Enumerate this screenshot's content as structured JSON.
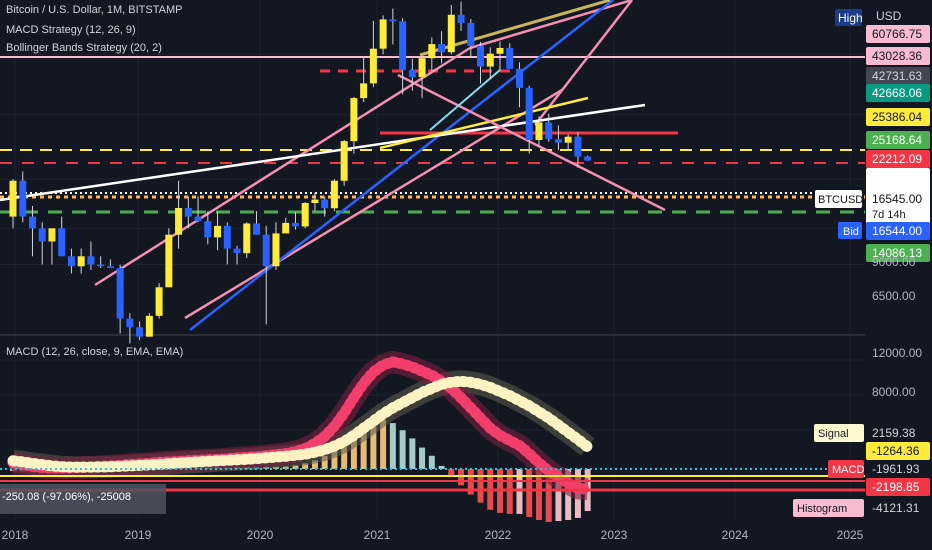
{
  "header": {
    "symbol_title": "Bitcoin / U.S. Dollar, 1M, BITSTAMP",
    "study_1": "MACD Strategy (12, 26, 9)",
    "study_2": "Bollinger Bands Strategy (20, 2)",
    "currency": "USD",
    "high_label": "High"
  },
  "macd_pane": {
    "title": "MACD (12, 26, close, 9, EMA, EMA)"
  },
  "measure_box": "-250.08 (-97.06%), -25008",
  "chart_data": [
    {
      "type": "candlestick",
      "title": "Bitcoin / U.S. Dollar, 1M, BITSTAMP",
      "x_axis": {
        "ticks": [
          "2018",
          "2019",
          "2020",
          "2021",
          "2022",
          "2023",
          "2024",
          "2025"
        ]
      },
      "y_axis": {
        "scale": "log",
        "ticks": [
          9000,
          6500
        ],
        "unit": "USD"
      },
      "price_labels": [
        {
          "value": "60766.75",
          "color": "#f8bbd0",
          "text": "#131722"
        },
        {
          "value": "43028.36",
          "color": "#f8bbd0",
          "text": "#131722"
        },
        {
          "value": "42731.63",
          "color": "#434651",
          "text": "#d1d4dc"
        },
        {
          "value": "42668.06",
          "color": "#089981",
          "text": "#ffffff"
        },
        {
          "value": "25386.04",
          "color": "#ffeb3b",
          "text": "#131722"
        },
        {
          "value": "25168.64",
          "color": "#4caf50",
          "text": "#ffffff"
        },
        {
          "value": "22212.09",
          "color": "#f23645",
          "text": "#ffffff"
        },
        {
          "value": "16545.00",
          "color": "#ffffff",
          "text": "#131722"
        },
        {
          "value": "16544.00",
          "color": "#2962ff",
          "text": "#ffffff"
        },
        {
          "value": "14086.13",
          "color": "#4caf50",
          "text": "#ffffff"
        }
      ],
      "current": {
        "symbol": "BTCUSD",
        "price": "16545.00",
        "countdown": "7d 14h",
        "bid_label": "Bid",
        "bid": "16544.00"
      },
      "candles": [
        [
          10000,
          14000,
          9000,
          13800
        ],
        [
          13800,
          15000,
          9500,
          10000
        ],
        [
          10000,
          11000,
          7000,
          9000
        ],
        [
          9000,
          9500,
          6500,
          8000
        ],
        [
          8000,
          8500,
          6500,
          9000
        ],
        [
          9000,
          10000,
          7000,
          7000
        ],
        [
          7000,
          7500,
          6000,
          6400
        ],
        [
          6400,
          7500,
          6000,
          7000
        ],
        [
          7000,
          8000,
          6200,
          6500
        ],
        [
          6500,
          7000,
          6300,
          6400
        ],
        [
          6400,
          6800,
          6300,
          6300
        ],
        [
          6300,
          6500,
          3500,
          4000
        ],
        [
          4000,
          4200,
          3200,
          3700
        ],
        [
          3700,
          3900,
          3300,
          3400
        ],
        [
          3400,
          4200,
          3400,
          4100
        ],
        [
          4100,
          5500,
          4000,
          5300
        ],
        [
          5300,
          9000,
          5300,
          8500
        ],
        [
          8500,
          13800,
          7500,
          10800
        ],
        [
          10800,
          12000,
          9000,
          10000
        ],
        [
          10000,
          12000,
          9500,
          9600
        ],
        [
          9600,
          10500,
          7800,
          8300
        ],
        [
          8300,
          10500,
          7400,
          9200
        ],
        [
          9200,
          9500,
          6500,
          7500
        ],
        [
          7500,
          7700,
          6500,
          7200
        ],
        [
          7200,
          9500,
          6900,
          9400
        ],
        [
          9400,
          10500,
          8500,
          8500
        ],
        [
          8500,
          9200,
          3800,
          6400
        ],
        [
          6400,
          9500,
          6200,
          8600
        ],
        [
          8600,
          9900,
          8600,
          9450
        ],
        [
          9450,
          10400,
          8900,
          9150
        ],
        [
          9150,
          11400,
          9000,
          11300
        ],
        [
          11300,
          12400,
          10500,
          11650
        ],
        [
          11650,
          12000,
          10000,
          10780
        ],
        [
          10780,
          14000,
          10500,
          13800
        ],
        [
          13800,
          19900,
          13200,
          19700
        ],
        [
          19700,
          29300,
          17600,
          29000
        ],
        [
          29000,
          42000,
          28000,
          33100
        ],
        [
          33100,
          58000,
          32000,
          45200
        ],
        [
          45200,
          61000,
          43000,
          58800
        ],
        [
          58800,
          64800,
          47000,
          57800
        ],
        [
          57800,
          59500,
          30000,
          37300
        ],
        [
          37300,
          41300,
          31000,
          35000
        ],
        [
          35000,
          42000,
          29000,
          41500
        ],
        [
          41500,
          50000,
          37000,
          47100
        ],
        [
          47100,
          52900,
          39600,
          43800
        ],
        [
          43800,
          67000,
          43000,
          61300
        ],
        [
          61300,
          69000,
          53000,
          57000
        ],
        [
          57000,
          59000,
          42000,
          46300
        ],
        [
          46300,
          48000,
          33000,
          38500
        ],
        [
          38500,
          45800,
          34300,
          43200
        ],
        [
          43200,
          48200,
          37000,
          45500
        ],
        [
          45500,
          47500,
          37700,
          37700
        ],
        [
          37700,
          40000,
          26700,
          31800
        ],
        [
          31800,
          32400,
          17600,
          19900
        ],
        [
          19900,
          24600,
          18800,
          23300
        ],
        [
          23300,
          25200,
          19600,
          20050
        ],
        [
          20050,
          22700,
          18200,
          19430
        ],
        [
          19430,
          20900,
          18200,
          20500
        ],
        [
          20500,
          21400,
          15500,
          17150
        ],
        [
          17150,
          17300,
          16500,
          16545
        ]
      ],
      "lines": [
        "pink parallel channels",
        "blue trendline",
        "white trendline",
        "yellow trendline",
        "red horizontal",
        "dashed support/resistance"
      ]
    },
    {
      "type": "area",
      "title": "MACD (12, 26, close, 9, EMA, EMA)",
      "y_axis": {
        "ticks": [
          12000,
          8000
        ]
      },
      "labels": [
        {
          "name": "Signal",
          "value": "2159.38",
          "name_bg": "#fff8d0",
          "name_text": "#131722",
          "value_bg": "#131722",
          "value_text": "#d1d4dc"
        },
        {
          "name": "",
          "value": "-1264.36",
          "name_bg": "",
          "name_text": "",
          "value_bg": "#ffeb3b",
          "value_text": "#131722"
        },
        {
          "name": "MACD",
          "value": "-1961.93",
          "name_bg": "#f23645",
          "name_text": "#ffffff",
          "value_bg": "#131722",
          "value_text": "#d1d4dc"
        },
        {
          "name": "",
          "value": "-2198.85",
          "name_bg": "",
          "name_text": "",
          "value_bg": "#f23645",
          "value_text": "#ffffff"
        },
        {
          "name": "Histogram",
          "value": "-4121.31",
          "name_bg": "#f8bbd0",
          "name_text": "#131722",
          "value_bg": "#131722",
          "value_text": "#d1d4dc"
        }
      ],
      "macd": [
        600,
        450,
        250,
        150,
        100,
        100,
        120,
        160,
        200,
        250,
        300,
        350,
        450,
        500,
        550,
        650,
        700,
        750,
        820,
        850,
        900,
        950,
        1000,
        1100,
        1150,
        1200,
        1300,
        1400,
        1500,
        1700,
        2000,
        2500,
        3200,
        4200,
        5500,
        7000,
        8400,
        9500,
        10200,
        10500,
        10300,
        10000,
        9600,
        9200,
        8600,
        7900,
        7000,
        6000,
        5000,
        4000,
        3300,
        2800,
        2300,
        1500,
        600,
        -200,
        -800,
        -1400,
        -1900,
        -1962
      ],
      "signal": [
        800,
        700,
        550,
        420,
        300,
        230,
        190,
        180,
        185,
        200,
        220,
        260,
        300,
        350,
        400,
        450,
        520,
        580,
        640,
        700,
        750,
        800,
        850,
        900,
        950,
        1020,
        1100,
        1180,
        1250,
        1350,
        1450,
        1650,
        1900,
        2250,
        2700,
        3300,
        4000,
        4700,
        5400,
        6000,
        6500,
        7000,
        7500,
        7900,
        8300,
        8500,
        8600,
        8500,
        8300,
        8000,
        7600,
        7200,
        6700,
        6200,
        5600,
        5000,
        4300,
        3600,
        2900,
        2159
      ],
      "histogram": [
        -200,
        -250,
        -300,
        -270,
        -200,
        -130,
        -70,
        -20,
        15,
        50,
        80,
        90,
        150,
        150,
        150,
        200,
        180,
        170,
        180,
        150,
        150,
        150,
        150,
        200,
        200,
        180,
        200,
        220,
        250,
        350,
        550,
        850,
        1300,
        1950,
        2800,
        3700,
        4400,
        4800,
        4800,
        4500,
        3800,
        3000,
        2100,
        1300,
        300,
        -600,
        -1600,
        -2500,
        -3300,
        -4000,
        -4300,
        -4400,
        -4400,
        -4700,
        -5000,
        -5200,
        -5100,
        -5000,
        -4800,
        -4121
      ]
    }
  ]
}
